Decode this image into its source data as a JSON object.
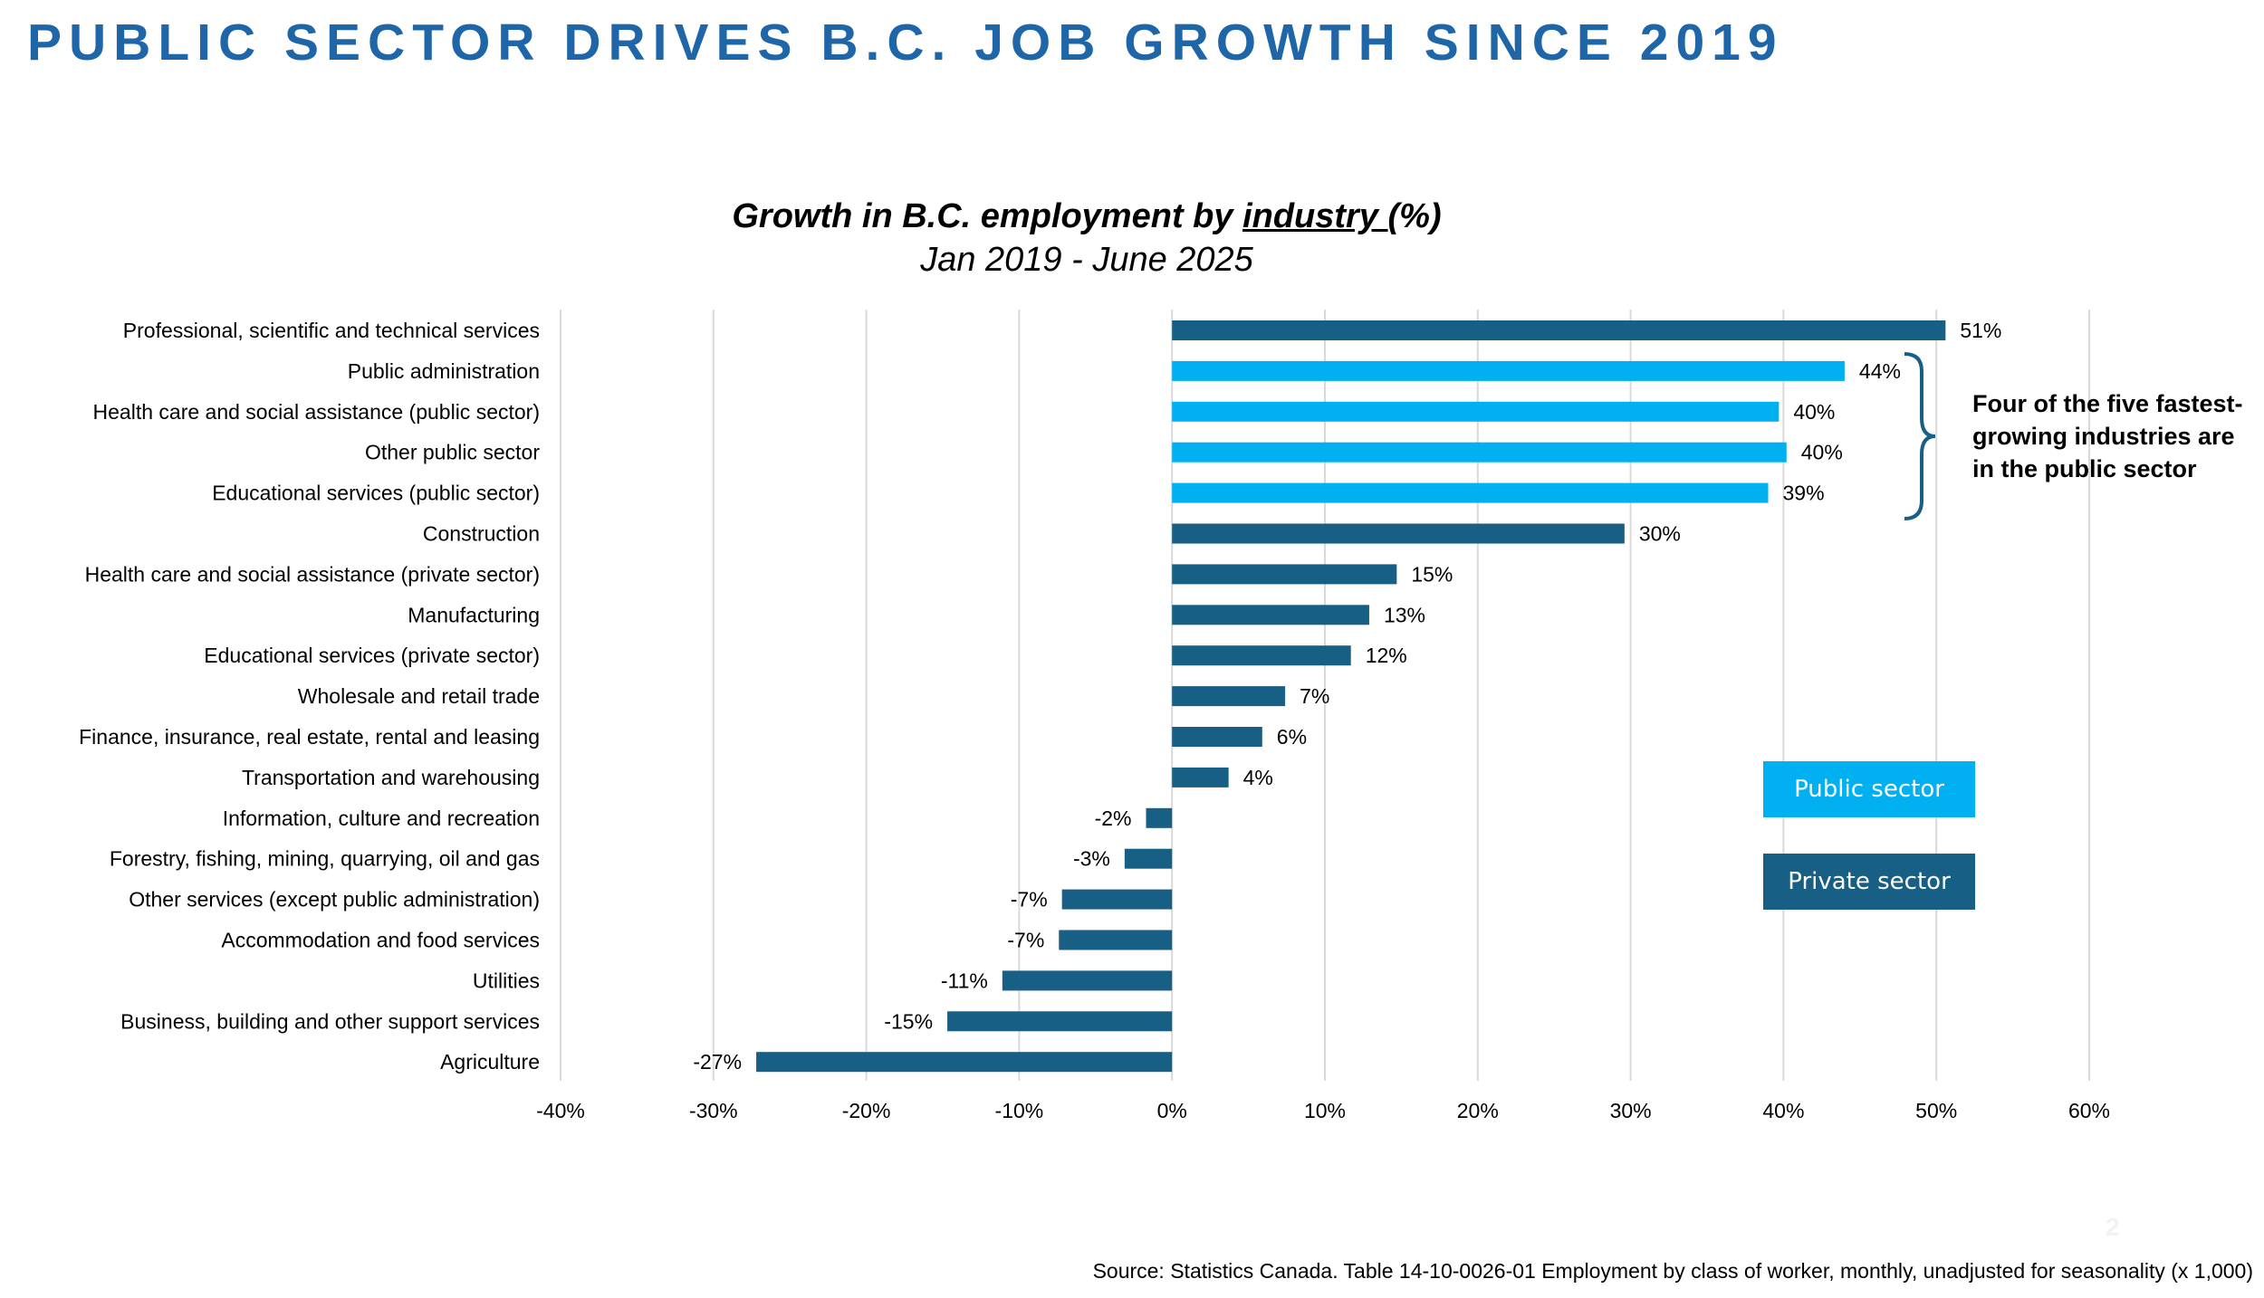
{
  "page": {
    "title": "PUBLIC SECTOR DRIVES B.C. JOB GROWTH SINCE 2019",
    "source": "Source: Statistics Canada. Table 14-10-0026-01  Employment by class of worker, monthly, unadjusted for seasonality (x 1,000)",
    "page_number": "2"
  },
  "colors": {
    "title": "#1f66a8",
    "public_sector": "#00b0f0",
    "private_sector": "#175f84",
    "gridline": "#d9d9d9"
  },
  "chart_data": {
    "type": "bar",
    "orientation": "horizontal",
    "title_prefix": "Growth in B.C. employment by ",
    "title_underlined": "industry ",
    "title_suffix": "(%)",
    "subtitle": "Jan 2019 - June 2025",
    "xlim": [
      -40,
      60
    ],
    "xticks": [
      -40,
      -30,
      -20,
      -10,
      0,
      10,
      20,
      30,
      40,
      50,
      60
    ],
    "tick_suffix": "%",
    "grid": true,
    "categories": [
      "Professional, scientific and technical services",
      "Public administration",
      "Health care and social assistance (public sector)",
      "Other public sector",
      "Educational services (public sector)",
      "Construction",
      "Health care and social assistance (private sector)",
      "Manufacturing",
      "Educational services (private sector)",
      "Wholesale and retail trade",
      "Finance, insurance, real estate, rental and leasing",
      "Transportation and warehousing",
      "Information, culture and recreation",
      "Forestry, fishing, mining, quarrying, oil and gas",
      "Other services (except public administration)",
      "Accommodation and food services",
      "Utilities",
      "Business, building and other support services",
      "Agriculture"
    ],
    "values": [
      50.6,
      44.0,
      39.7,
      40.2,
      39.0,
      29.6,
      14.7,
      12.9,
      11.7,
      7.4,
      5.9,
      3.7,
      -1.7,
      -3.1,
      -7.2,
      -7.4,
      -11.1,
      -14.7,
      -27.2
    ],
    "data_labels": [
      "51%",
      "44%",
      "40%",
      "40%",
      "39%",
      "30%",
      "15%",
      "13%",
      "12%",
      "7%",
      "6%",
      "4%",
      "-2%",
      "-3%",
      "-7%",
      "-7%",
      "-11%",
      "-15%",
      "-27%"
    ],
    "sector": [
      "private",
      "public",
      "public",
      "public",
      "public",
      "private",
      "private",
      "private",
      "private",
      "private",
      "private",
      "private",
      "private",
      "private",
      "private",
      "private",
      "private",
      "private",
      "private"
    ],
    "legend": {
      "public": "Public sector",
      "private": "Private sector"
    },
    "annotation": "Four of the five fastest-growing industries are in the public sector"
  }
}
